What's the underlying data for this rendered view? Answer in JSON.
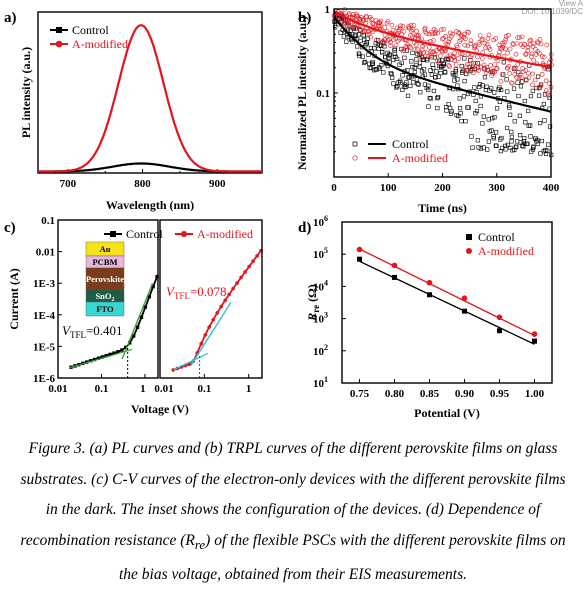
{
  "header": {
    "view_label": "View A",
    "doi": "DOI: 10.1039/DC"
  },
  "colors": {
    "control": "#000000",
    "modified": "#e4141b",
    "green_fit": "#3aa63a",
    "cyan_fit": "#2ec0d8",
    "dashed_red": "#e4141b"
  },
  "panels": {
    "a": {
      "label": "a)"
    },
    "b": {
      "label": "b)"
    },
    "c": {
      "label": "c)"
    },
    "d": {
      "label": "d)"
    }
  },
  "chart_data": [
    {
      "id": "a",
      "type": "line",
      "xlabel": "Wavelength (nm)",
      "ylabel": "PL intensity (a.u.)",
      "xlim": [
        660,
        960
      ],
      "xticks": [
        700,
        800,
        900
      ],
      "yticks_visible": false,
      "legend_position": "top-left",
      "series": [
        {
          "name": "Control",
          "color": "#000000",
          "marker": "square",
          "peak_x": 798,
          "peak_y": 0.055,
          "width": 38,
          "baseline": 0.01
        },
        {
          "name": "A-modified",
          "color": "#e4141b",
          "marker": "circle",
          "peak_x": 798,
          "peak_y": 1.0,
          "width": 30,
          "baseline": 0.01
        }
      ],
      "ylim": [
        0,
        1.1
      ]
    },
    {
      "id": "b",
      "type": "scatter",
      "xlabel": "Time (ns)",
      "ylabel": "Normalized PL intensity (a.u.)",
      "xlim": [
        0,
        400
      ],
      "ylim": [
        0.01,
        1
      ],
      "yscale": "log",
      "xticks": [
        0,
        100,
        200,
        300,
        400
      ],
      "yticks": [
        {
          "v": 1,
          "t": "1"
        },
        {
          "v": 0.1,
          "t": "0.1"
        }
      ],
      "legend_position": "bottom-center",
      "series": [
        {
          "name": "Control",
          "color": "#000000",
          "marker": "open-square",
          "fit": {
            "a1": 0.55,
            "t1": 40,
            "a2": 0.25,
            "t2": 280
          }
        },
        {
          "name": "A-modified",
          "color": "#e4141b",
          "marker": "open-circle",
          "fit": {
            "a1": 0.35,
            "t1": 60,
            "a2": 0.58,
            "t2": 380
          }
        }
      ]
    },
    {
      "id": "c",
      "type": "line",
      "xlabel": "Voltage (V)",
      "ylabel": "Current (A)",
      "yscale": "log",
      "xscale": "log",
      "ylim": [
        1e-06,
        0.1
      ],
      "yticks": [
        {
          "v": 0.1,
          "t": "0.1"
        },
        {
          "v": 0.01,
          "t": "0.01"
        },
        {
          "v": 0.001,
          "t": "1E-3"
        },
        {
          "v": 0.0001,
          "t": "1E-4"
        },
        {
          "v": 1e-05,
          "t": "1E-5"
        },
        {
          "v": 1e-06,
          "t": "1E-6"
        }
      ],
      "sub_panels": [
        {
          "name": "Control",
          "color": "#000000",
          "xlim": [
            0.01,
            2
          ],
          "xticks": [
            {
              "v": 0.01,
              "t": "0.01"
            },
            {
              "v": 0.1,
              "t": "0.1"
            },
            {
              "v": 1,
              "t": "1"
            }
          ],
          "vtfl_label": "V",
          "vtfl_sub": "TFL",
          "vtfl_value": "=0.401",
          "vtfl": 0.401
        },
        {
          "name": "A-modified",
          "color": "#e4141b",
          "xlim": [
            0.01,
            2
          ],
          "xticks": [
            {
              "v": 0.01,
              "t": "0.01"
            },
            {
              "v": 0.1,
              "t": "0.1"
            },
            {
              "v": 1,
              "t": "1"
            }
          ],
          "vtfl_label": "V",
          "vtfl_sub": "TFL",
          "vtfl_value": "=0.078",
          "vtfl": 0.078
        }
      ],
      "inset_layers": [
        {
          "label": "Au",
          "color": "#f7e11b"
        },
        {
          "label": "PCBM",
          "color": "#e9b6dd"
        },
        {
          "label": "Perovskite",
          "color": "#7a3d1b"
        },
        {
          "label": "SnO",
          "sub": "2",
          "color": "#1f5c46"
        },
        {
          "label": "FTO",
          "color": "#3ad6d3"
        }
      ]
    },
    {
      "id": "d",
      "type": "scatter",
      "xlabel": "Potential (V)",
      "ylabel_main": "R",
      "ylabel_sub": "re",
      "ylabel_unit": " (Ω)",
      "xlim": [
        0.725,
        1.025
      ],
      "ylim": [
        10,
        1000000
      ],
      "yscale": "log",
      "xticks": [
        0.75,
        0.8,
        0.85,
        0.9,
        0.95,
        1.0
      ],
      "xtick_labels": [
        "0.75",
        "0.80",
        "0.85",
        "0.90",
        "0.95",
        "1.00"
      ],
      "yticks": [
        {
          "v": 10,
          "m": "10",
          "e": "1"
        },
        {
          "v": 100,
          "m": "10",
          "e": "2"
        },
        {
          "v": 1000,
          "m": "10",
          "e": "3"
        },
        {
          "v": 10000,
          "m": "10",
          "e": "4"
        },
        {
          "v": 100000,
          "m": "10",
          "e": "5"
        },
        {
          "v": 1000000,
          "m": "10",
          "e": "6"
        }
      ],
      "legend_position": "top-right",
      "series": [
        {
          "name": "Control",
          "color": "#000000",
          "marker": "square",
          "x": [
            0.75,
            0.8,
            0.85,
            0.9,
            0.95,
            1.0
          ],
          "y": [
            70000,
            19000,
            5500,
            1700,
            420,
            200
          ],
          "fit": [
            [
              0.75,
              60000
            ],
            [
              1.0,
              160
            ]
          ]
        },
        {
          "name": "A-modified",
          "color": "#e4141b",
          "marker": "circle",
          "x": [
            0.75,
            0.8,
            0.85,
            0.9,
            0.95,
            1.0
          ],
          "y": [
            140000,
            45000,
            13000,
            4300,
            1100,
            330
          ],
          "fit": [
            [
              0.75,
              145000
            ],
            [
              1.0,
              300
            ]
          ]
        }
      ]
    }
  ],
  "caption": {
    "text": "Figure 3. (a) PL curves and (b) TRPL curves of the different perovskite films on glass substrates. (c) C-V curves of the electron-only devices with the different perovskite films in the dark. The inset shows the configuration of the devices. (d) Dependence of recombination resistance (",
    "r": "R",
    "re": "re",
    "tail": ") of the flexible PSCs with the different perovskite films on the bias voltage, obtained from their EIS measurements."
  }
}
